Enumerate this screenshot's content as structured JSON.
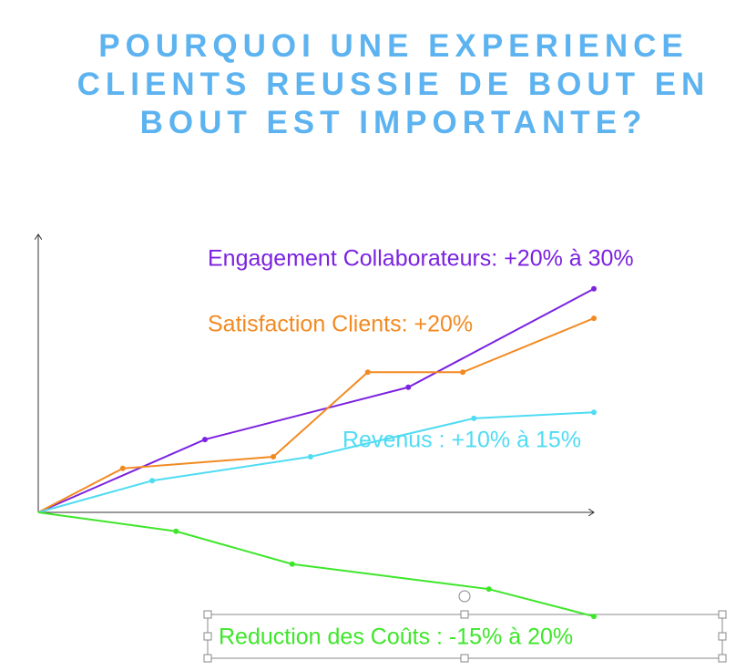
{
  "chart_data": {
    "type": "line",
    "title": "POURQUOI UNE EXPERIENCE CLIENTS REUSSIE DE BOUT EN BOUT EST IMPORTANTE?",
    "xlim": [
      0,
      100
    ],
    "ylim": [
      -20,
      50
    ],
    "series": [
      {
        "name": "Engagement Collaborateurs: +20% à 30%",
        "color": "#7b22e0",
        "x": [
          0,
          30,
          66.6,
          100
        ],
        "values": [
          0,
          13.1,
          22.5,
          40.2
        ]
      },
      {
        "name": "Satisfaction Clients: +20%",
        "color": "#f28a22",
        "x": [
          0,
          15.2,
          42.3,
          59.3,
          76.4,
          100
        ],
        "values": [
          0,
          7.9,
          10,
          25.2,
          25.2,
          34.9
        ]
      },
      {
        "name": "Revenus : +10% à 15%",
        "color": "#4fdcf2",
        "x": [
          0,
          20.5,
          49,
          78.4,
          100
        ],
        "values": [
          0,
          5.7,
          10,
          16.9,
          18
        ]
      },
      {
        "name": "Reduction des Coûts : -15% à 20%",
        "color": "#3ee62a",
        "x": [
          0,
          24.8,
          45.7,
          81.1,
          100
        ],
        "values": [
          0,
          -3.4,
          -9.3,
          -13.8,
          -18.7
        ]
      }
    ]
  }
}
